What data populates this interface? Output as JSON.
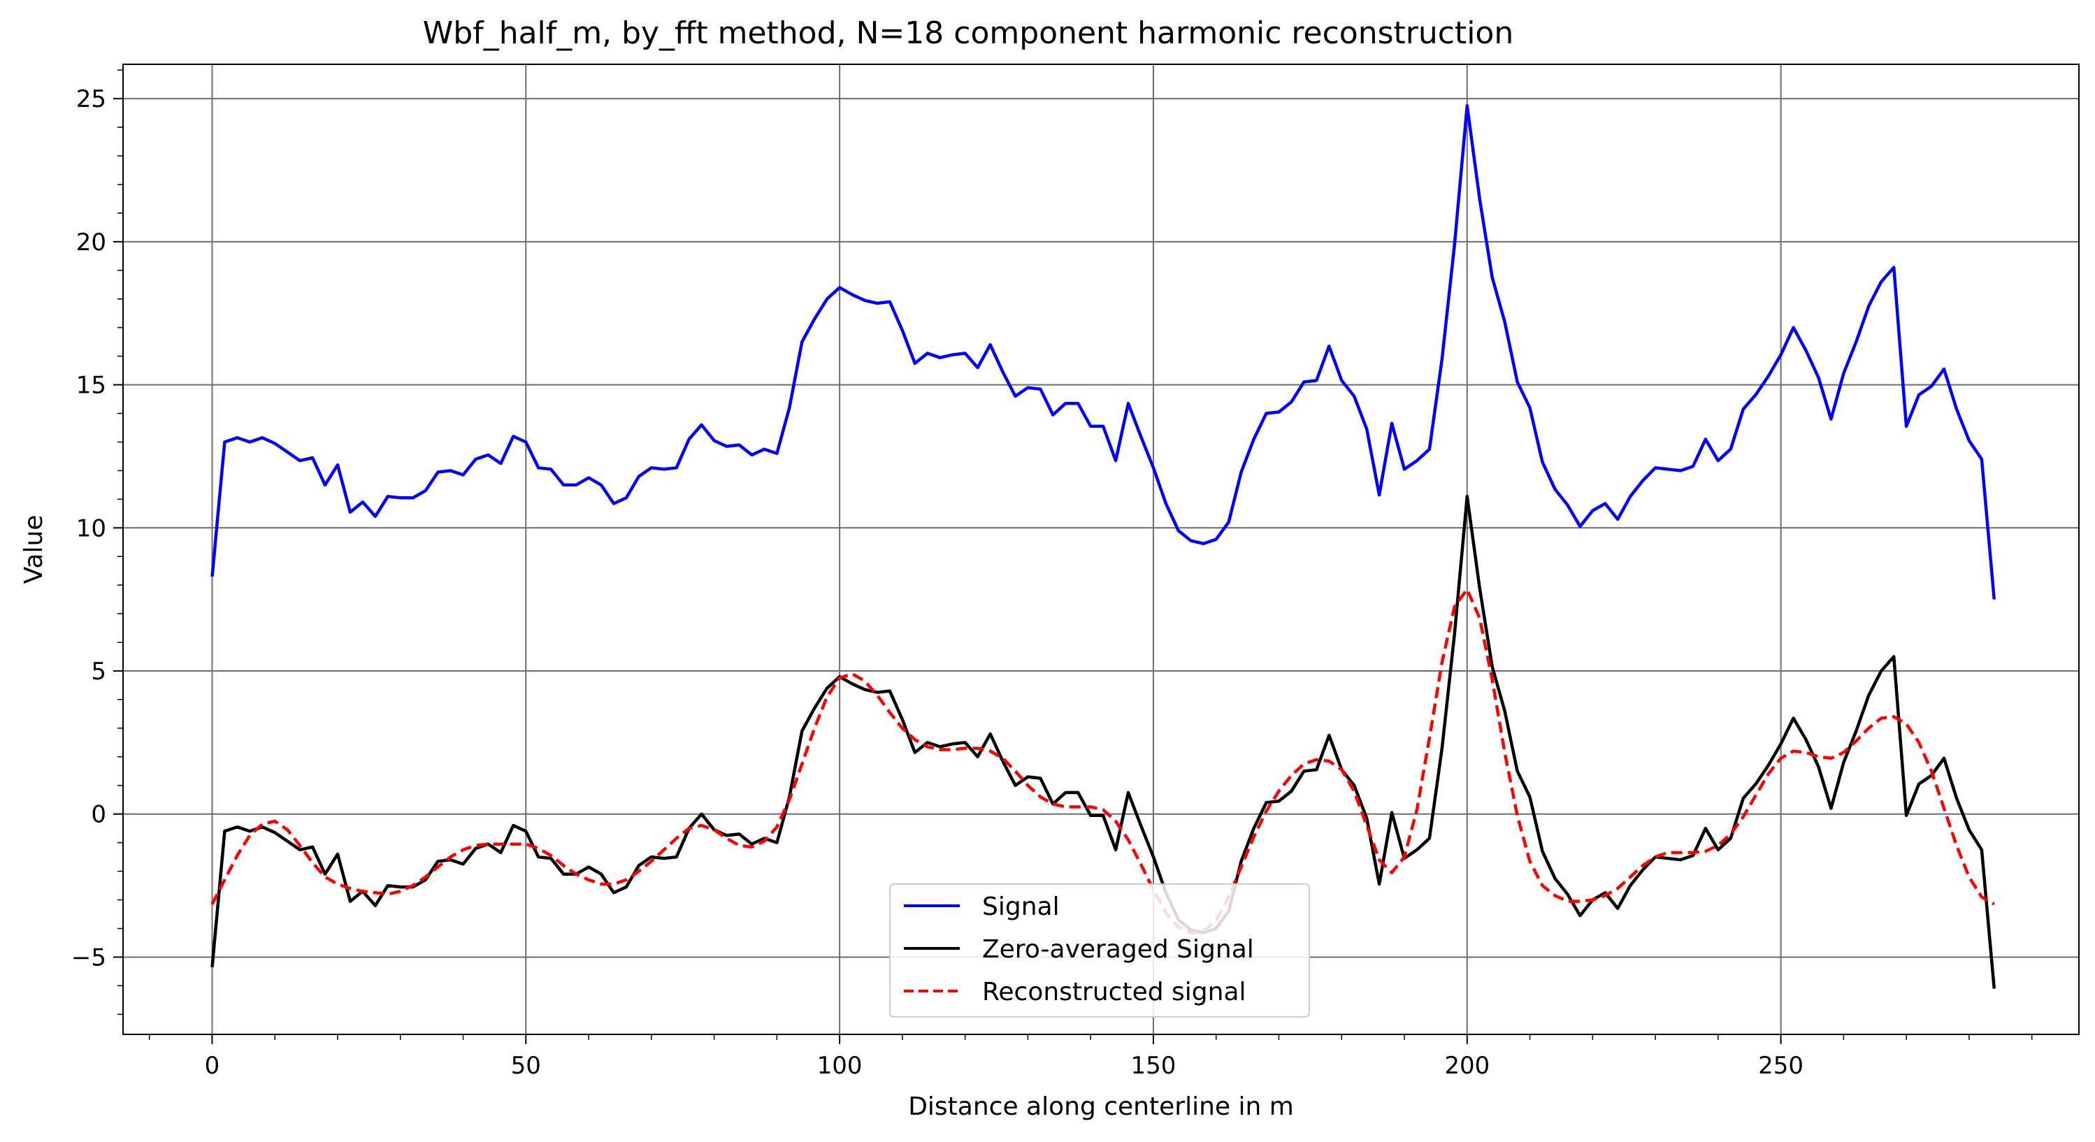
{
  "chart_data": {
    "type": "line",
    "title": "Wbf_half_m, by_fft method, N=18 component harmonic reconstruction",
    "xlabel": "Distance along centerline in m",
    "ylabel": "Value",
    "xlim": [
      -14.2,
      297.5
    ],
    "ylim": [
      -7.7,
      26.2
    ],
    "xticks": [
      0,
      50,
      100,
      150,
      200,
      250
    ],
    "yticks": [
      -5,
      0,
      5,
      10,
      15,
      20,
      25
    ],
    "xtick_labels": [
      "0",
      "50",
      "100",
      "150",
      "200",
      "250"
    ],
    "ytick_labels": [
      "−5",
      "0",
      "5",
      "10",
      "15",
      "20",
      "25"
    ],
    "grid": true,
    "legend_position": "bottom-center",
    "x": [
      0,
      2,
      4,
      6,
      8,
      10,
      12,
      14,
      16,
      18,
      20,
      22,
      24,
      26,
      28,
      30,
      32,
      34,
      36,
      38,
      40,
      42,
      44,
      46,
      48,
      50,
      52,
      54,
      56,
      58,
      60,
      62,
      64,
      66,
      68,
      70,
      72,
      74,
      76,
      78,
      80,
      82,
      84,
      86,
      88,
      90,
      92,
      94,
      96,
      98,
      100,
      102,
      104,
      106,
      108,
      110,
      112,
      114,
      116,
      118,
      120,
      122,
      124,
      126,
      128,
      130,
      132,
      134,
      136,
      138,
      140,
      142,
      144,
      146,
      148,
      150,
      152,
      154,
      156,
      158,
      160,
      162,
      164,
      166,
      168,
      170,
      172,
      174,
      176,
      178,
      180,
      182,
      184,
      186,
      188,
      190,
      192,
      194,
      196,
      198,
      200,
      202,
      204,
      206,
      208,
      210,
      212,
      214,
      216,
      218,
      220,
      222,
      224,
      226,
      228,
      230,
      232,
      234,
      236,
      238,
      240,
      242,
      244,
      246,
      248,
      250,
      252,
      254,
      256,
      258,
      260,
      262,
      264,
      266,
      268,
      270,
      272,
      274,
      276,
      278,
      280,
      282,
      284
    ],
    "series": [
      {
        "name": "Signal",
        "color": "#0000ff",
        "style": "solid",
        "values": [
          8.3,
          13.0,
          13.15,
          13.0,
          13.15,
          12.95,
          12.65,
          12.35,
          12.45,
          11.5,
          12.2,
          10.55,
          10.9,
          10.4,
          11.1,
          11.05,
          11.05,
          11.3,
          11.95,
          12.0,
          11.85,
          12.4,
          12.55,
          12.25,
          13.2,
          13.0,
          12.1,
          12.05,
          11.5,
          11.5,
          11.75,
          11.5,
          10.85,
          11.05,
          11.8,
          12.1,
          12.05,
          12.1,
          13.1,
          13.6,
          13.05,
          12.85,
          12.9,
          12.55,
          12.75,
          12.6,
          14.2,
          16.5,
          17.3,
          18.0,
          18.4,
          18.15,
          17.95,
          17.85,
          17.9,
          16.9,
          15.75,
          16.1,
          15.95,
          16.05,
          16.1,
          15.6,
          16.4,
          15.45,
          14.6,
          14.9,
          14.85,
          13.95,
          14.35,
          14.35,
          13.55,
          13.55,
          12.35,
          14.35,
          13.2,
          12.1,
          10.85,
          9.9,
          9.55,
          9.45,
          9.6,
          10.2,
          11.95,
          13.1,
          14.0,
          14.05,
          14.4,
          15.1,
          15.15,
          16.35,
          15.15,
          14.6,
          13.45,
          11.15,
          13.65,
          12.05,
          12.35,
          12.75,
          15.9,
          19.9,
          24.75,
          21.5,
          18.75,
          17.2,
          15.1,
          14.2,
          12.3,
          11.35,
          10.8,
          10.05,
          10.6,
          10.85,
          10.3,
          11.1,
          11.65,
          12.1,
          12.05,
          12.0,
          12.15,
          13.1,
          12.35,
          12.75,
          14.15,
          14.65,
          15.3,
          16.05,
          17.0,
          16.2,
          15.25,
          13.8,
          15.4,
          16.5,
          17.75,
          18.6,
          19.1,
          13.55,
          14.65,
          14.95,
          15.55,
          14.15,
          13.05,
          12.4,
          7.5
        ]
      },
      {
        "name": "Zero-averaged Signal",
        "color": "#000000",
        "style": "solid",
        "values": [
          -5.35,
          -0.6,
          -0.45,
          -0.6,
          -0.45,
          -0.65,
          -0.95,
          -1.25,
          -1.15,
          -2.1,
          -1.4,
          -3.05,
          -2.7,
          -3.2,
          -2.5,
          -2.55,
          -2.55,
          -2.3,
          -1.65,
          -1.6,
          -1.75,
          -1.2,
          -1.05,
          -1.35,
          -0.4,
          -0.6,
          -1.5,
          -1.55,
          -2.1,
          -2.1,
          -1.85,
          -2.1,
          -2.75,
          -2.55,
          -1.8,
          -1.5,
          -1.55,
          -1.5,
          -0.5,
          0.0,
          -0.55,
          -0.75,
          -0.7,
          -1.05,
          -0.85,
          -1.0,
          0.6,
          2.9,
          3.7,
          4.4,
          4.8,
          4.55,
          4.35,
          4.25,
          4.3,
          3.3,
          2.15,
          2.5,
          2.35,
          2.45,
          2.5,
          2.0,
          2.8,
          1.85,
          1.0,
          1.3,
          1.25,
          0.35,
          0.75,
          0.75,
          -0.05,
          -0.05,
          -1.25,
          0.75,
          -0.4,
          -1.5,
          -2.75,
          -3.7,
          -4.05,
          -4.15,
          -4.0,
          -3.4,
          -1.65,
          -0.5,
          0.4,
          0.45,
          0.8,
          1.5,
          1.55,
          2.75,
          1.55,
          1.0,
          -0.15,
          -2.45,
          0.05,
          -1.55,
          -1.25,
          -0.85,
          2.3,
          6.3,
          11.1,
          7.9,
          5.15,
          3.6,
          1.5,
          0.6,
          -1.3,
          -2.25,
          -2.8,
          -3.55,
          -3.0,
          -2.75,
          -3.3,
          -2.5,
          -1.95,
          -1.5,
          -1.55,
          -1.6,
          -1.45,
          -0.5,
          -1.25,
          -0.85,
          0.55,
          1.05,
          1.7,
          2.45,
          3.35,
          2.6,
          1.65,
          0.2,
          1.8,
          2.9,
          4.15,
          5.0,
          5.5,
          -0.05,
          1.05,
          1.35,
          1.95,
          0.55,
          -0.55,
          -1.25,
          -6.1
        ]
      },
      {
        "name": "Reconstructed signal",
        "color": "#ff0000",
        "style": "dashed",
        "values": [
          -3.15,
          -2.3,
          -1.45,
          -0.75,
          -0.35,
          -0.25,
          -0.55,
          -1.1,
          -1.7,
          -2.2,
          -2.45,
          -2.6,
          -2.7,
          -2.75,
          -2.8,
          -2.7,
          -2.5,
          -2.2,
          -1.85,
          -1.5,
          -1.25,
          -1.1,
          -1.05,
          -1.05,
          -1.05,
          -1.05,
          -1.2,
          -1.45,
          -1.8,
          -2.1,
          -2.3,
          -2.45,
          -2.45,
          -2.3,
          -2.0,
          -1.65,
          -1.25,
          -0.85,
          -0.5,
          -0.4,
          -0.55,
          -0.85,
          -1.1,
          -1.15,
          -0.95,
          -0.45,
          0.5,
          1.75,
          3.0,
          4.1,
          4.75,
          4.9,
          4.65,
          4.15,
          3.55,
          3.0,
          2.6,
          2.35,
          2.25,
          2.25,
          2.3,
          2.3,
          2.2,
          1.95,
          1.5,
          1.0,
          0.6,
          0.35,
          0.25,
          0.25,
          0.25,
          0.15,
          -0.25,
          -0.9,
          -1.75,
          -2.65,
          -3.45,
          -3.95,
          -4.15,
          -4.1,
          -3.7,
          -2.9,
          -1.85,
          -0.8,
          0.1,
          0.8,
          1.35,
          1.75,
          1.9,
          1.85,
          1.55,
          0.8,
          -0.4,
          -1.6,
          -2.05,
          -1.5,
          0.15,
          2.65,
          5.3,
          7.25,
          7.85,
          6.85,
          4.7,
          2.15,
          -0.05,
          -1.65,
          -2.5,
          -2.85,
          -3.05,
          -3.05,
          -3.0,
          -2.85,
          -2.6,
          -2.2,
          -1.8,
          -1.5,
          -1.35,
          -1.35,
          -1.35,
          -1.3,
          -1.1,
          -0.7,
          -0.1,
          0.65,
          1.4,
          1.95,
          2.2,
          2.15,
          2.0,
          1.95,
          2.15,
          2.55,
          3.0,
          3.35,
          3.4,
          3.15,
          2.5,
          1.5,
          0.2,
          -1.1,
          -2.2,
          -2.9,
          -3.15
        ]
      }
    ]
  }
}
